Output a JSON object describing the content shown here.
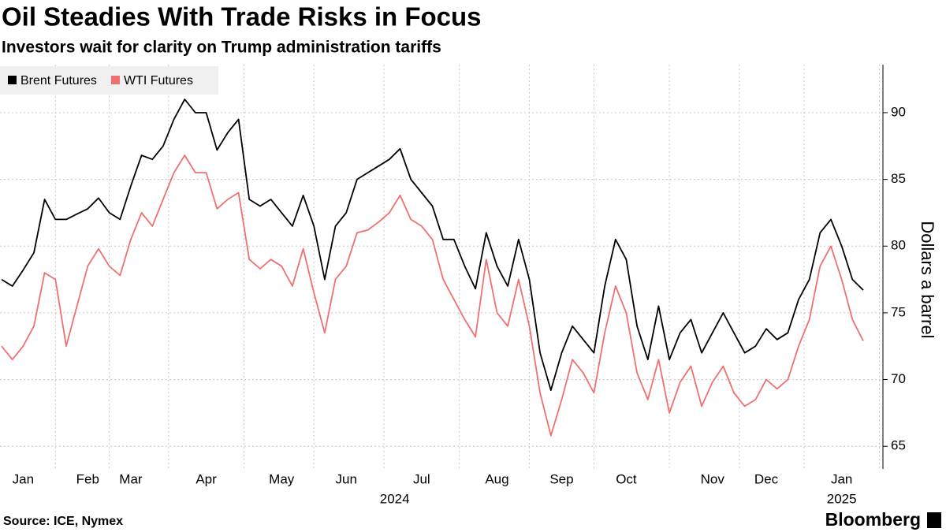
{
  "chart_data": {
    "type": "line",
    "title": "Oil Steadies With Trade Risks in Focus",
    "subtitle": "Investors wait for clarity on Trump administration tariffs",
    "y_label": "Dollars a barrel",
    "source": "Source: ICE, Nymex",
    "brand": "Bloomberg",
    "categories": [
      null,
      null,
      "Jan",
      null,
      null,
      null,
      null,
      null,
      "Feb",
      null,
      null,
      null,
      "Mar",
      null,
      null,
      null,
      null,
      null,
      null,
      "Apr",
      null,
      null,
      null,
      null,
      null,
      null,
      "May",
      null,
      null,
      null,
      null,
      null,
      "Jun",
      null,
      null,
      null,
      null,
      null,
      null,
      "Jul",
      null,
      null,
      null,
      null,
      null,
      null,
      "Aug",
      null,
      null,
      null,
      null,
      null,
      "Sep",
      null,
      null,
      null,
      null,
      null,
      "Oct",
      null,
      null,
      null,
      null,
      null,
      null,
      null,
      "Nov",
      null,
      null,
      null,
      null,
      "Dec",
      null,
      null,
      null,
      null,
      null,
      null,
      "Jan",
      null,
      null
    ],
    "years": [
      "2024",
      "2025"
    ],
    "series": [
      {
        "name": "Brent Futures",
        "color": "#000000",
        "values": [
          77.5,
          77.0,
          78.2,
          79.5,
          83.5,
          82.0,
          82.0,
          82.4,
          82.8,
          83.6,
          82.5,
          82.0,
          84.5,
          86.8,
          86.5,
          87.5,
          89.5,
          91.0,
          90.0,
          90.0,
          87.2,
          88.5,
          89.5,
          83.5,
          83.0,
          83.5,
          82.5,
          81.5,
          83.8,
          81.5,
          77.5,
          81.5,
          82.5,
          85.0,
          85.5,
          86.0,
          86.5,
          87.3,
          85.0,
          84.0,
          83.0,
          80.5,
          80.5,
          78.5,
          76.8,
          81.0,
          78.5,
          77.0,
          80.5,
          77.5,
          72.0,
          69.2,
          72.0,
          74.0,
          73.0,
          72.0,
          77.0,
          80.5,
          79.0,
          74.0,
          71.5,
          75.5,
          71.5,
          73.5,
          74.5,
          72.0,
          73.5,
          75.0,
          73.5,
          72.0,
          72.5,
          73.8,
          73.0,
          73.5,
          76.0,
          77.5,
          81.0,
          82.0,
          80.0,
          77.5,
          76.7
        ]
      },
      {
        "name": "WTI Futures",
        "color": "#f07070",
        "values": [
          72.5,
          71.5,
          72.5,
          74.0,
          78.0,
          77.5,
          72.5,
          75.5,
          78.5,
          79.8,
          78.5,
          77.8,
          80.5,
          82.5,
          81.5,
          83.5,
          85.5,
          86.8,
          85.5,
          85.5,
          82.8,
          83.5,
          84.0,
          79.0,
          78.3,
          79.0,
          78.5,
          77.0,
          79.8,
          76.5,
          73.5,
          77.5,
          78.5,
          81.0,
          81.2,
          81.8,
          82.5,
          83.8,
          82.0,
          81.5,
          80.5,
          77.5,
          76.0,
          74.5,
          73.2,
          79.0,
          75.0,
          74.0,
          77.5,
          74.0,
          69.0,
          65.8,
          68.5,
          71.5,
          70.5,
          69.0,
          73.5,
          77.0,
          75.0,
          70.5,
          68.5,
          71.5,
          67.5,
          69.8,
          71.0,
          68.0,
          69.8,
          71.0,
          69.0,
          68.0,
          68.5,
          70.0,
          69.3,
          70.0,
          72.5,
          74.5,
          78.5,
          80.0,
          77.5,
          74.5,
          72.9
        ]
      }
    ],
    "ylim": [
      63.3,
      93.6
    ],
    "yticks": [
      65,
      70,
      75,
      80,
      85,
      90
    ],
    "grid": true,
    "legend": "top-left"
  }
}
